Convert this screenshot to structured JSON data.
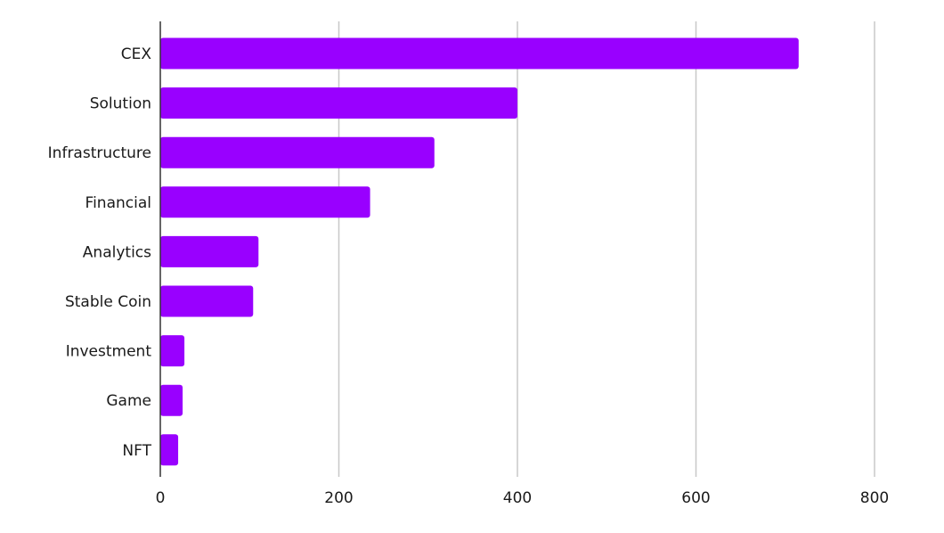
{
  "chart_data": {
    "type": "bar",
    "orientation": "horizontal",
    "categories": [
      "CEX",
      "Solution",
      "Infrastructure",
      "Financial",
      "Analytics",
      "Stable Coin",
      "Investment",
      "Game",
      "NFT"
    ],
    "values": [
      715,
      400,
      307,
      235,
      110,
      104,
      27,
      25,
      20
    ],
    "xlim": [
      0,
      800
    ],
    "xticks": [
      "0",
      "200",
      "400",
      "600",
      "800"
    ],
    "grid": "vertical",
    "bar_color": "#9900ff",
    "title": "",
    "xlabel": "",
    "ylabel": ""
  }
}
